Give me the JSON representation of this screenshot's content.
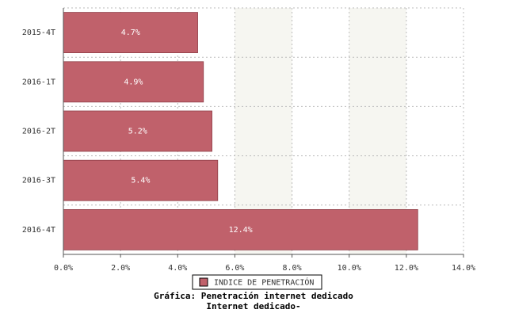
{
  "chart_data": {
    "type": "bar",
    "orientation": "horizontal",
    "title": "Gráfica: Penetración internet dedicado",
    "subtitle": "Internet dedicado-",
    "categories": [
      "2015-4T",
      "2016-1T",
      "2016-2T",
      "2016-3T",
      "2016-4T"
    ],
    "series": [
      {
        "name": "INDICE DE PENETRACIÓN",
        "color": "#c0616b",
        "values": [
          4.7,
          4.9,
          5.2,
          5.4,
          12.4
        ],
        "value_labels": [
          "4.7%",
          "4.9%",
          "5.2%",
          "5.4%",
          "12.4%"
        ]
      }
    ],
    "xlim": [
      0,
      14
    ],
    "xticks": [
      {
        "value": 0,
        "label": "0.0%"
      },
      {
        "value": 2,
        "label": "2.0%"
      },
      {
        "value": 4,
        "label": "4.0%"
      },
      {
        "value": 6,
        "label": "6.0%"
      },
      {
        "value": 8,
        "label": "8.0%"
      },
      {
        "value": 10,
        "label": "10.0%"
      },
      {
        "value": 12,
        "label": "12.0%"
      },
      {
        "value": 14,
        "label": "14.0%"
      }
    ],
    "grid": true,
    "legend": "bottom"
  }
}
